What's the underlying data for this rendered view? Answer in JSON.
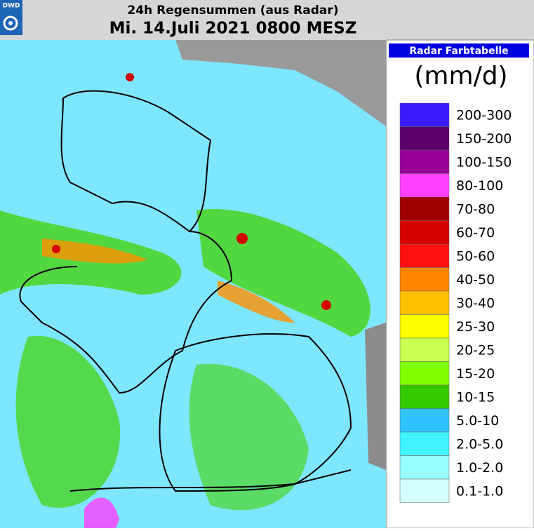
{
  "header": {
    "logo": "DWD",
    "title": "24h Regensummen (aus Radar)",
    "subtitle": "Mi. 14.Juli 2021 0800 MESZ"
  },
  "legend": {
    "title": "Radar Farbtabelle",
    "unit": "(mm/d)",
    "items": [
      {
        "label": "200-300",
        "color": "#3a1aff"
      },
      {
        "label": "150-200",
        "color": "#5c006c"
      },
      {
        "label": "100-150",
        "color": "#980098"
      },
      {
        "label": "80-100",
        "color": "#ff40ff"
      },
      {
        "label": "70-80",
        "color": "#a00000"
      },
      {
        "label": "60-70",
        "color": "#d40000"
      },
      {
        "label": "50-60",
        "color": "#ff1010"
      },
      {
        "label": "40-50",
        "color": "#ff8400"
      },
      {
        "label": "30-40",
        "color": "#ffc000"
      },
      {
        "label": "25-30",
        "color": "#ffff00"
      },
      {
        "label": "20-25",
        "color": "#c8ff50"
      },
      {
        "label": "15-20",
        "color": "#80ff00"
      },
      {
        "label": "10-15",
        "color": "#34c800"
      },
      {
        "label": "5.0-10",
        "color": "#30c4ff"
      },
      {
        "label": "2.0-5.0",
        "color": "#40f4ff"
      },
      {
        "label": "1.0-2.0",
        "color": "#98ffff"
      },
      {
        "label": "0.1-1.0",
        "color": "#d4ffff"
      }
    ]
  }
}
